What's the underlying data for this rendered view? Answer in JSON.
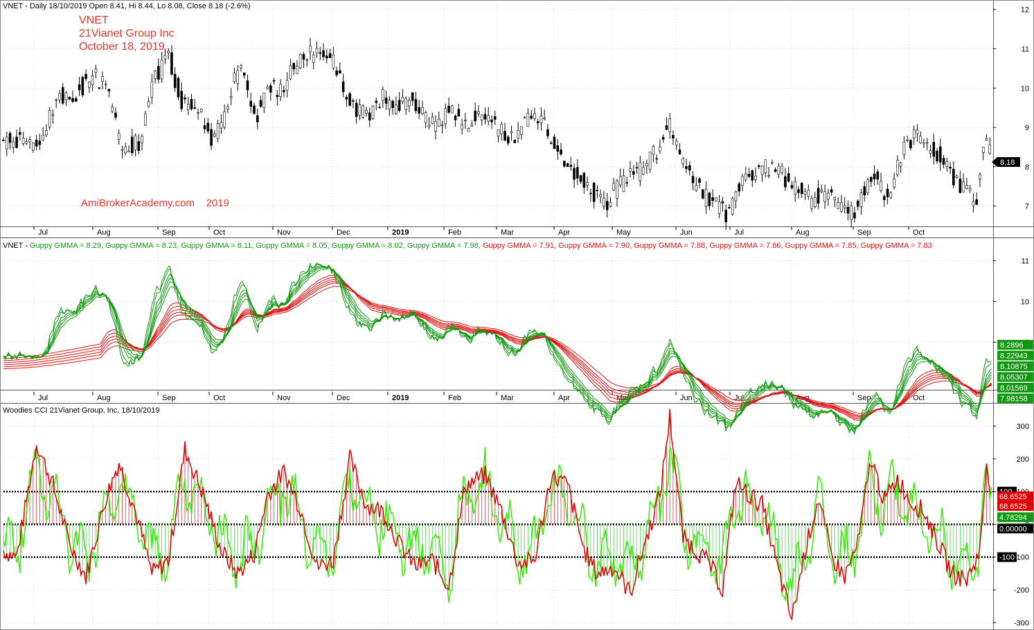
{
  "panes": {
    "price": {
      "title": "VNET - Daily 18/10/2019 Open 8.41, Hi 8.44, Lo 8.08, Close 8.18 (-2.6%)",
      "watermark": [
        "VNET",
        "21Vianet Group Inc",
        "October 18, 2019"
      ],
      "credit": "AmiBrokerAcademy.com    2019",
      "last_label": "8.18"
    },
    "gmma": {
      "prefix": "VNET - ",
      "legend": [
        {
          "text": "Guppy GMMA = 8.29",
          "color": "#119911"
        },
        {
          "text": "Guppy GMMA = 8.23",
          "color": "#119911"
        },
        {
          "text": "Guppy GMMA = 8.11",
          "color": "#119911"
        },
        {
          "text": "Guppy GMMA = 8.05",
          "color": "#119911"
        },
        {
          "text": "Guppy GMMA = 8.02",
          "color": "#119911"
        },
        {
          "text": "Guppy GMMA = 7.98",
          "color": "#119911"
        },
        {
          "text": "Guppy GMMA = 7.91",
          "color": "#dd1111"
        },
        {
          "text": "Guppy GMMA = 7.90",
          "color": "#dd1111"
        },
        {
          "text": "Guppy GMMA = 7.88",
          "color": "#dd1111"
        },
        {
          "text": "Guppy GMMA = 7.86",
          "color": "#dd1111"
        },
        {
          "text": "Guppy GMMA = 7.85",
          "color": "#dd1111"
        },
        {
          "text": "Guppy GMMA = 7.83",
          "color": "#dd1111"
        }
      ],
      "value_labels": [
        "8.2896",
        "8.22943",
        "8.10875",
        "8.05307",
        "8.01569",
        "7.98158"
      ]
    },
    "cci": {
      "title": "Woodies CCI  21Vianet Group, Inc. 18/10/2019",
      "value_labels": [
        "100",
        "68.6525",
        "68.6525",
        "4.78294",
        "0.00000",
        "-100"
      ]
    }
  },
  "colors": {
    "up": "#ffffff",
    "down": "#000000",
    "short": "#119911",
    "long": "#dd1111",
    "cci_green": "#33ee00",
    "cci_red": "#dd0000"
  },
  "chart_data": [
    {
      "type": "candlestick",
      "title": "VNET - Daily 18/10/2019 Open 8.41, Hi 8.44, Lo 8.08, Close 8.18 (-2.6%)",
      "x_labels": [
        "Jul",
        "Aug",
        "Sep",
        "Oct",
        "Nov",
        "Dec",
        "2019",
        "Feb",
        "Mar",
        "Apr",
        "May",
        "Jun",
        "Jul",
        "Aug",
        "Sep",
        "Oct"
      ],
      "y_ticks": [
        7,
        8,
        9,
        10,
        11,
        12
      ],
      "ylim": [
        6.5,
        12.1
      ],
      "close_path": [
        [
          0,
          8.6
        ],
        [
          10,
          8.7
        ],
        [
          22,
          8.5
        ],
        [
          32,
          9.8
        ],
        [
          42,
          9.7
        ],
        [
          55,
          10.4
        ],
        [
          62,
          10.0
        ],
        [
          72,
          8.5
        ],
        [
          82,
          8.6
        ],
        [
          92,
          10.3
        ],
        [
          100,
          10.8
        ],
        [
          108,
          9.6
        ],
        [
          118,
          9.5
        ],
        [
          126,
          8.7
        ],
        [
          133,
          9.2
        ],
        [
          143,
          10.6
        ],
        [
          153,
          9.2
        ],
        [
          160,
          10.2
        ],
        [
          167,
          9.9
        ],
        [
          178,
          10.6
        ],
        [
          190,
          11.0
        ],
        [
          200,
          10.7
        ],
        [
          210,
          9.6
        ],
        [
          222,
          9.3
        ],
        [
          230,
          9.8
        ],
        [
          238,
          9.4
        ],
        [
          246,
          9.7
        ],
        [
          260,
          9.1
        ],
        [
          272,
          9.4
        ],
        [
          280,
          9.0
        ],
        [
          288,
          9.4
        ],
        [
          300,
          8.9
        ],
        [
          310,
          8.7
        ],
        [
          318,
          9.3
        ],
        [
          328,
          9.1
        ],
        [
          338,
          8.3
        ],
        [
          348,
          7.8
        ],
        [
          356,
          7.4
        ],
        [
          365,
          7.0
        ],
        [
          373,
          7.6
        ],
        [
          380,
          7.8
        ],
        [
          390,
          8.1
        ],
        [
          398,
          8.5
        ],
        [
          404,
          9.0
        ],
        [
          412,
          8.0
        ],
        [
          420,
          7.5
        ],
        [
          430,
          7.1
        ],
        [
          438,
          6.8
        ],
        [
          446,
          7.5
        ],
        [
          456,
          7.9
        ],
        [
          464,
          8.0
        ],
        [
          472,
          7.8
        ],
        [
          480,
          7.4
        ],
        [
          490,
          7.2
        ],
        [
          500,
          7.3
        ],
        [
          508,
          7.0
        ],
        [
          515,
          6.8
        ],
        [
          522,
          7.4
        ],
        [
          530,
          7.8
        ],
        [
          536,
          7.1
        ],
        [
          544,
          8.3
        ],
        [
          552,
          8.8
        ],
        [
          560,
          8.6
        ],
        [
          570,
          8.2
        ],
        [
          578,
          7.6
        ],
        [
          585,
          7.3
        ],
        [
          590,
          7.2
        ],
        [
          594,
          8.6
        ],
        [
          598,
          8.5
        ],
        [
          600,
          8.18
        ]
      ],
      "n_bars": 600
    },
    {
      "type": "line",
      "title": "Guppy GMMA",
      "x_labels": [
        "Jul",
        "Aug",
        "Sep",
        "Oct",
        "Nov",
        "Dec",
        "2019",
        "Feb",
        "Mar",
        "Apr",
        "May",
        "Jun",
        "Jul",
        "Aug",
        "Sep",
        "Oct"
      ],
      "y_ticks": [
        9,
        10,
        11
      ],
      "ylim": [
        7.85,
        11.55
      ],
      "series": [
        {
          "name": "Guppy GMMA = 8.29",
          "last": 8.29,
          "group": "short"
        },
        {
          "name": "Guppy GMMA = 8.23",
          "last": 8.23,
          "group": "short"
        },
        {
          "name": "Guppy GMMA = 8.11",
          "last": 8.11,
          "group": "short"
        },
        {
          "name": "Guppy GMMA = 8.05",
          "last": 8.05,
          "group": "short"
        },
        {
          "name": "Guppy GMMA = 8.02",
          "last": 8.02,
          "group": "short"
        },
        {
          "name": "Guppy GMMA = 7.98",
          "last": 7.98,
          "group": "short"
        },
        {
          "name": "Guppy GMMA = 7.91",
          "last": 7.91,
          "group": "long"
        },
        {
          "name": "Guppy GMMA = 7.90",
          "last": 7.9,
          "group": "long"
        },
        {
          "name": "Guppy GMMA = 7.88",
          "last": 7.88,
          "group": "long"
        },
        {
          "name": "Guppy GMMA = 7.86",
          "last": 7.86,
          "group": "long"
        },
        {
          "name": "Guppy GMMA = 7.85",
          "last": 7.85,
          "group": "long"
        },
        {
          "name": "Guppy GMMA = 7.83",
          "last": 7.83,
          "group": "long"
        }
      ]
    },
    {
      "type": "line",
      "title": "Woodies CCI  21Vianet Group, Inc. 18/10/2019",
      "y_ticks": [
        -300,
        -200,
        -100,
        0,
        100,
        200,
        300
      ],
      "ylim": [
        -312,
        358
      ],
      "reference_lines": [
        100,
        0,
        -100
      ],
      "series": [
        {
          "name": "CCI",
          "color": "#dd0000",
          "last": 68.6525
        },
        {
          "name": "Turbo CCI",
          "color": "#33ee00",
          "last": 4.78294
        }
      ],
      "cci_path": [
        [
          0,
          -80
        ],
        [
          8,
          -100
        ],
        [
          20,
          250
        ],
        [
          30,
          120
        ],
        [
          40,
          -60
        ],
        [
          50,
          -160
        ],
        [
          62,
          80
        ],
        [
          70,
          190
        ],
        [
          80,
          40
        ],
        [
          90,
          -150
        ],
        [
          100,
          -110
        ],
        [
          110,
          230
        ],
        [
          122,
          80
        ],
        [
          132,
          -80
        ],
        [
          142,
          -150
        ],
        [
          152,
          -90
        ],
        [
          160,
          90
        ],
        [
          170,
          160
        ],
        [
          180,
          50
        ],
        [
          190,
          -130
        ],
        [
          200,
          -110
        ],
        [
          210,
          200
        ],
        [
          220,
          60
        ],
        [
          230,
          40
        ],
        [
          240,
          -60
        ],
        [
          250,
          -130
        ],
        [
          260,
          -110
        ],
        [
          270,
          -190
        ],
        [
          280,
          120
        ],
        [
          292,
          150
        ],
        [
          302,
          40
        ],
        [
          312,
          -120
        ],
        [
          322,
          -110
        ],
        [
          332,
          150
        ],
        [
          342,
          120
        ],
        [
          352,
          -80
        ],
        [
          360,
          -150
        ],
        [
          370,
          -130
        ],
        [
          380,
          -210
        ],
        [
          388,
          -70
        ],
        [
          398,
          90
        ],
        [
          404,
          330
        ],
        [
          412,
          -40
        ],
        [
          420,
          -80
        ],
        [
          428,
          -120
        ],
        [
          436,
          -200
        ],
        [
          444,
          130
        ],
        [
          452,
          90
        ],
        [
          460,
          60
        ],
        [
          470,
          -150
        ],
        [
          478,
          -290
        ],
        [
          486,
          -80
        ],
        [
          494,
          80
        ],
        [
          502,
          -100
        ],
        [
          510,
          -160
        ],
        [
          518,
          -60
        ],
        [
          526,
          200
        ],
        [
          534,
          70
        ],
        [
          542,
          140
        ],
        [
          550,
          70
        ],
        [
          558,
          40
        ],
        [
          566,
          -50
        ],
        [
          575,
          -150
        ],
        [
          584,
          -170
        ],
        [
          592,
          -80
        ],
        [
          596,
          190
        ],
        [
          600,
          68.65
        ]
      ]
    }
  ]
}
